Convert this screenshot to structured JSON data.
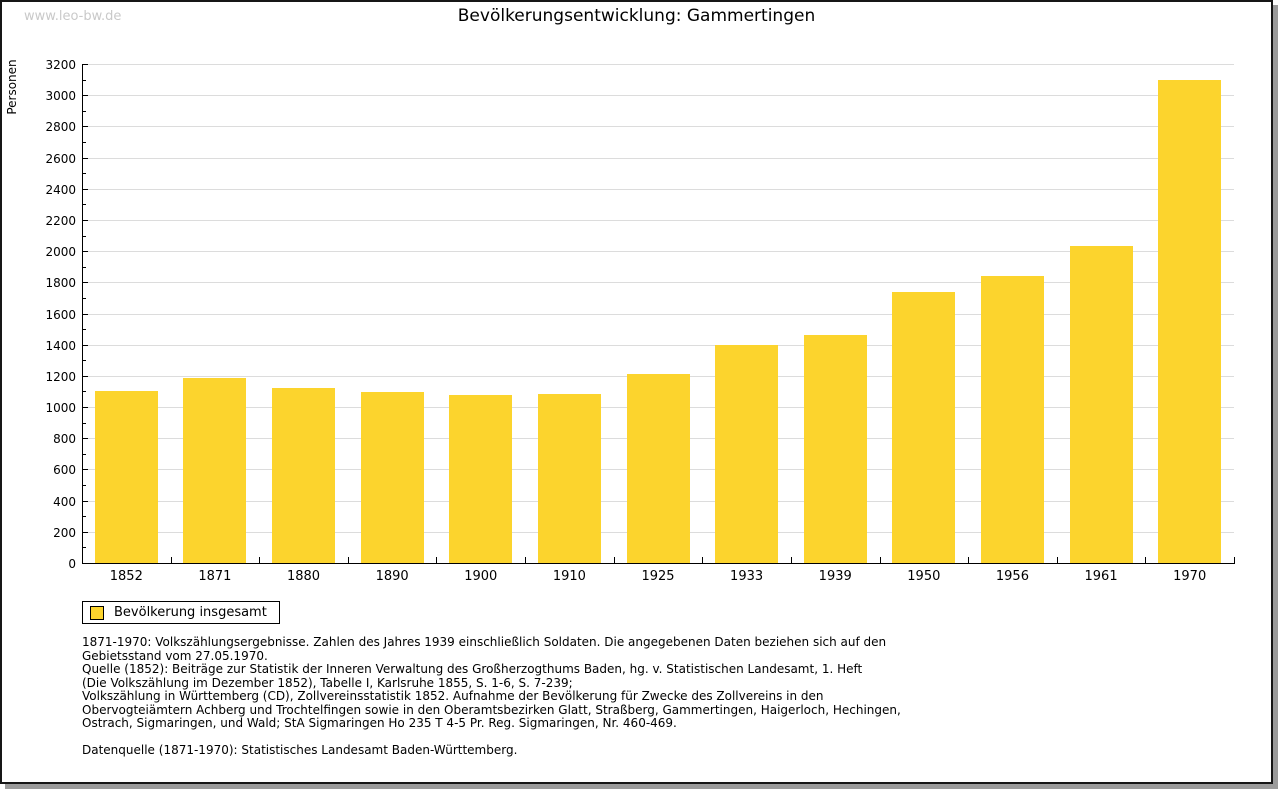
{
  "page": {
    "watermark": "www.leo-bw.de",
    "title": "Bevölkerungsentwicklung: Gammertingen"
  },
  "chart_data": {
    "type": "bar",
    "title": "Bevölkerungsentwicklung: Gammertingen",
    "xlabel": "",
    "ylabel": "Personen",
    "categories": [
      "1852",
      "1871",
      "1880",
      "1890",
      "1900",
      "1910",
      "1925",
      "1933",
      "1939",
      "1950",
      "1956",
      "1961",
      "1970"
    ],
    "series": [
      {
        "name": "Bevölkerung insgesamt",
        "values": [
          1100,
          1185,
          1125,
          1095,
          1080,
          1085,
          1210,
          1400,
          1465,
          1740,
          1840,
          2030,
          3100
        ],
        "color": "#fcd42d"
      }
    ],
    "ylim": [
      0,
      3200
    ],
    "ytick_step": 200,
    "yminor_step": 100,
    "grid": true,
    "legend_position": "bottom-left"
  },
  "legend": {
    "items": [
      {
        "label": "Bevölkerung insgesamt",
        "color": "#fcd42d"
      }
    ]
  },
  "footnotes": {
    "lines": [
      "1871-1970: Volkszählungsergebnisse. Zahlen des Jahres 1939 einschließlich Soldaten. Die angegebenen Daten beziehen sich auf den",
      "Gebietsstand vom 27.05.1970.",
      "Quelle (1852): Beiträge zur Statistik der Inneren Verwaltung des Großherzogthums Baden, hg. v. Statistischen Landesamt, 1. Heft",
      "(Die Volkszählung im Dezember 1852), Tabelle I, Karlsruhe 1855, S. 1-6, S. 7-239;",
      "Volkszählung in Württemberg (CD), Zollvereinsstatistik 1852. Aufnahme der Bevölkerung für Zwecke des Zollvereins in den",
      "Obervogteiämtern Achberg und Trochtelfingen sowie in den Oberamtsbezirken Glatt, Straßberg, Gammertingen, Haigerloch, Hechingen,",
      "Ostrach, Sigmaringen, und Wald; StA Sigmaringen Ho 235 T 4-5 Pr. Reg. Sigmaringen, Nr. 460-469."
    ],
    "datasource": "Datenquelle (1871-1970): Statistisches Landesamt Baden-Württemberg."
  }
}
